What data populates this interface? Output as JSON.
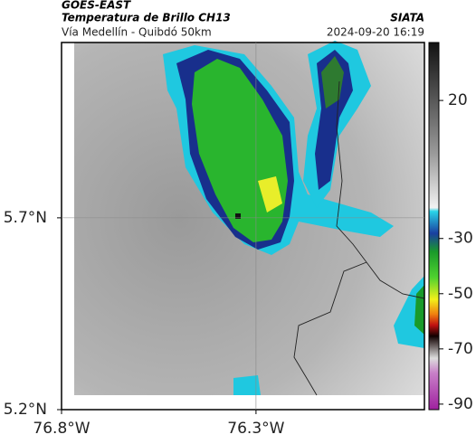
{
  "header": {
    "source": "GOES-EAST",
    "title": "Temperatura de Brillo CH13",
    "agency": "SIATA",
    "subtitle": "Vía Medellín - Quibdó 50km",
    "timestamp": "2024-09-20 16:19"
  },
  "map": {
    "xlim": [
      -76.8,
      -75.867
    ],
    "ylim": [
      5.2,
      6.157
    ],
    "xticks": [
      {
        "value": -76.8,
        "label": "76.8°W"
      },
      {
        "value": -76.3,
        "label": "76.3°W"
      }
    ],
    "yticks": [
      {
        "value": 5.7,
        "label": "5.7°N"
      },
      {
        "value": 5.2,
        "label": "5.2°N"
      }
    ],
    "grid": true,
    "colorbar": {
      "lim": [
        -92,
        41
      ],
      "ticks": [
        20,
        -30,
        -50,
        -70,
        -90
      ]
    }
  }
}
